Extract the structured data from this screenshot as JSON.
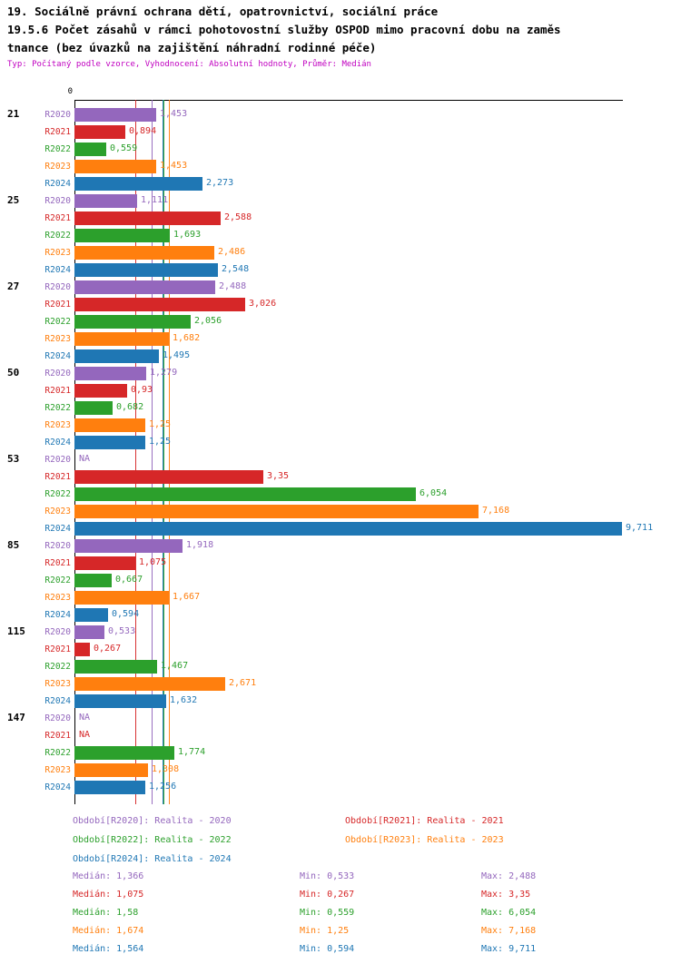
{
  "header": {
    "line1": "19. Sociálně právní ochrana dětí, opatrovnictví, sociální práce",
    "line2": "19.5.6 Počet zásahů v rámci pohotovostní služby OSPOD mimo pracovní dobu na zaměs",
    "line3": "tnance (bez úvazků na zajištění náhradní rodinné péče)",
    "subtitle": "Typ: Počítaný podle vzorce, Vyhodnocení: Absolutní hodnoty, Průměr: Medián"
  },
  "chart_data": {
    "type": "bar",
    "orientation": "horizontal",
    "title": "19.5.6 Počet zásahů v rámci pohotovostní služby OSPOD mimo pracovní dobu na zaměstnance (bez úvazků na zajištění náhradní rodinné péče)",
    "xlabel": "",
    "ylabel": "",
    "xlim": [
      0,
      9.711
    ],
    "axis": {
      "origin_label": "0"
    },
    "grid": false,
    "categories": [
      "21",
      "25",
      "27",
      "50",
      "53",
      "85",
      "115",
      "147"
    ],
    "series": [
      {
        "name": "R2020",
        "color": "#9467bd",
        "values": [
          1.453,
          1.111,
          2.488,
          1.279,
          null,
          1.918,
          0.533,
          null
        ],
        "labels": [
          "1,453",
          "1,111",
          "2,488",
          "1,279",
          "NA",
          "1,918",
          "0,533",
          "NA"
        ],
        "median": 1.366
      },
      {
        "name": "R2021",
        "color": "#d62728",
        "values": [
          0.894,
          2.588,
          3.026,
          0.93,
          3.35,
          1.075,
          0.267,
          null
        ],
        "labels": [
          "0,894",
          "2,588",
          "3,026",
          "0,93",
          "3,35",
          "1,075",
          "0,267",
          "NA"
        ],
        "median": 1.075
      },
      {
        "name": "R2022",
        "color": "#2ca02c",
        "values": [
          0.559,
          1.693,
          2.056,
          0.682,
          6.054,
          0.667,
          1.467,
          1.774
        ],
        "labels": [
          "0,559",
          "1,693",
          "2,056",
          "0,682",
          "6,054",
          "0,667",
          "1,467",
          "1,774"
        ],
        "median": 1.58
      },
      {
        "name": "R2023",
        "color": "#ff7f0e",
        "values": [
          1.453,
          2.486,
          1.682,
          1.25,
          7.168,
          1.667,
          2.671,
          1.308
        ],
        "labels": [
          "1,453",
          "2,486",
          "1,682",
          "1,25",
          "7,168",
          "1,667",
          "2,671",
          "1,308"
        ],
        "median": 1.674
      },
      {
        "name": "R2024",
        "color": "#1f77b4",
        "values": [
          2.273,
          2.548,
          1.495,
          1.25,
          9.711,
          0.594,
          1.632,
          1.256
        ],
        "labels": [
          "2,273",
          "2,548",
          "1,495",
          "1,25",
          "9,711",
          "0,594",
          "1,632",
          "1,256"
        ],
        "median": 1.564
      }
    ],
    "legend_position": "bottom"
  },
  "legend": {
    "items": [
      {
        "label": "Období[R2020]: Realita - 2020",
        "color": "#9467bd"
      },
      {
        "label": "Období[R2021]: Realita - 2021",
        "color": "#d62728"
      },
      {
        "label": "Období[R2022]: Realita - 2022",
        "color": "#2ca02c"
      },
      {
        "label": "Období[R2023]: Realita - 2023",
        "color": "#ff7f0e"
      },
      {
        "label": "Období[R2024]: Realita - 2024",
        "color": "#1f77b4"
      }
    ]
  },
  "stats": {
    "rows": [
      {
        "median": "Medián: 1,366",
        "min": "Min: 0,533",
        "max": "Max: 2,488",
        "color": "#9467bd"
      },
      {
        "median": "Medián: 1,075",
        "min": "Min: 0,267",
        "max": "Max: 3,35",
        "color": "#d62728"
      },
      {
        "median": "Medián: 1,58",
        "min": "Min: 0,559",
        "max": "Max: 6,054",
        "color": "#2ca02c"
      },
      {
        "median": "Medián: 1,674",
        "min": "Min: 1,25",
        "max": "Max: 7,168",
        "color": "#ff7f0e"
      },
      {
        "median": "Medián: 1,564",
        "min": "Min: 0,594",
        "max": "Max: 9,711",
        "color": "#1f77b4"
      }
    ]
  }
}
